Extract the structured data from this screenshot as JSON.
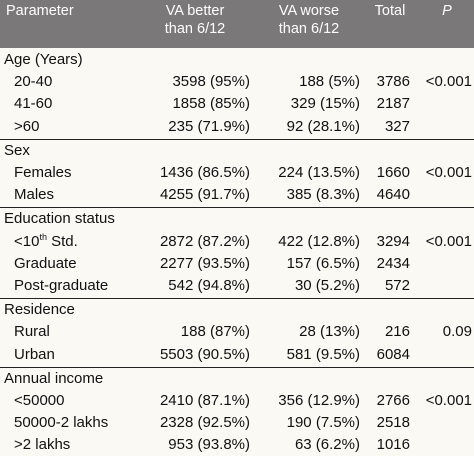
{
  "header": {
    "parameter": "Parameter",
    "better_line1": "VA better",
    "better_line2": "than 6/12",
    "worse_line1": "VA worse",
    "worse_line2": "than 6/12",
    "total": "Total",
    "p": "P"
  },
  "sections": [
    {
      "title": "Age (Years)",
      "rows": [
        {
          "label": "20-40",
          "better": "3598 (95%)",
          "worse": "188 (5%)",
          "total": "3786",
          "p": "<0.001"
        },
        {
          "label": "41-60",
          "better": "1858 (85%)",
          "worse": "329 (15%)",
          "total": "2187",
          "p": ""
        },
        {
          "label": ">60",
          "better": "235 (71.9%)",
          "worse": "92 (28.1%)",
          "total": "327",
          "p": ""
        }
      ]
    },
    {
      "title": "Sex",
      "rows": [
        {
          "label": "Females",
          "better": "1436 (86.5%)",
          "worse": "224 (13.5%)",
          "total": "1660",
          "p": "<0.001"
        },
        {
          "label": "Males",
          "better": "4255 (91.7%)",
          "worse": "385 (8.3%)",
          "total": "4640",
          "p": ""
        }
      ]
    },
    {
      "title": "Education status",
      "rows": [
        {
          "label": "<10",
          "label_sup": "th",
          "label_suffix": " Std.",
          "better": "2872 (87.2%)",
          "worse": "422 (12.8%)",
          "total": "3294",
          "p": "<0.001"
        },
        {
          "label": "Graduate",
          "better": "2277 (93.5%)",
          "worse": "157 (6.5%)",
          "total": "2434",
          "p": ""
        },
        {
          "label": "Post-graduate",
          "better": "542 (94.8%)",
          "worse": "30 (5.2%)",
          "total": "572",
          "p": ""
        }
      ]
    },
    {
      "title": "Residence",
      "rows": [
        {
          "label": "Rural",
          "better": "188 (87%)",
          "worse": "28 (13%)",
          "total": "216",
          "p": "0.09"
        },
        {
          "label": "Urban",
          "better": "5503 (90.5%)",
          "worse": "581 (9.5%)",
          "total": "6084",
          "p": ""
        }
      ]
    },
    {
      "title": "Annual income",
      "rows": [
        {
          "label": "<50000",
          "better": "2410 (87.1%)",
          "worse": "356 (12.9%)",
          "total": "2766",
          "p": "<0.001"
        },
        {
          "label": "50000-2 lakhs",
          "better": "2328 (92.5%)",
          "worse": "190 (7.5%)",
          "total": "2518",
          "p": ""
        },
        {
          "label": ">2 lakhs",
          "better": "953 (93.8%)",
          "worse": "63 (6.2%)",
          "total": "1016",
          "p": ""
        }
      ]
    }
  ]
}
